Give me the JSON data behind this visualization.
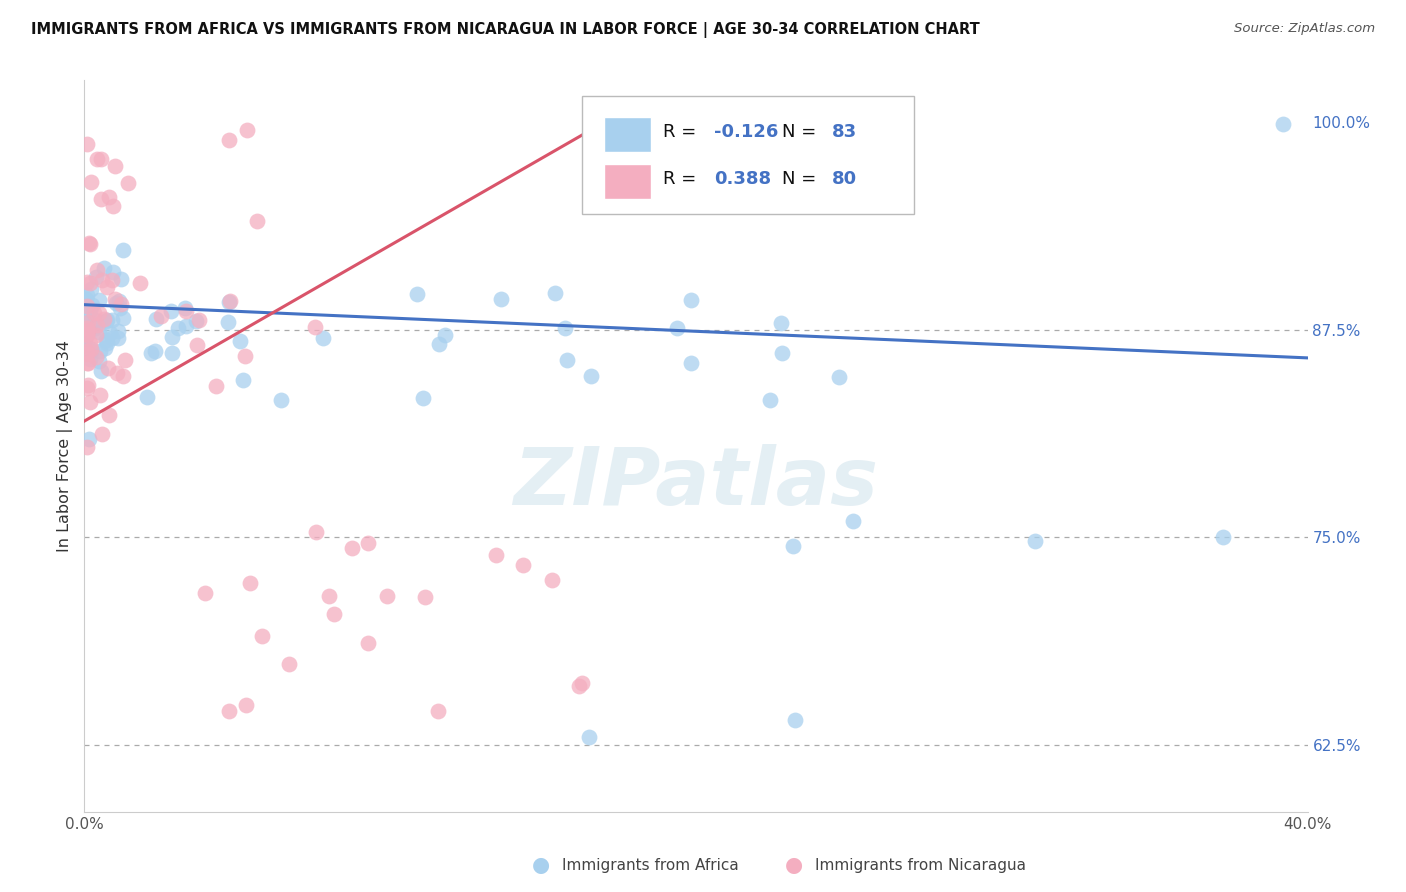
{
  "title": "IMMIGRANTS FROM AFRICA VS IMMIGRANTS FROM NICARAGUA IN LABOR FORCE | AGE 30-34 CORRELATION CHART",
  "source": "Source: ZipAtlas.com",
  "ylabel": "In Labor Force | Age 30-34",
  "xlim": [
    0.0,
    0.4
  ],
  "ylim": [
    0.585,
    1.025
  ],
  "yticks": [
    0.625,
    0.75,
    0.875,
    1.0
  ],
  "yticklabels": [
    "62.5%",
    "75.0%",
    "87.5%",
    "100.0%"
  ],
  "R_africa": -0.126,
  "N_africa": 83,
  "R_nicaragua": 0.388,
  "N_nicaragua": 80,
  "color_africa": "#a8d0ee",
  "color_nicaragua": "#f4aec0",
  "color_trendline_africa": "#4472c4",
  "color_trendline_nicaragua": "#d9546a",
  "legend_labels": [
    "Immigrants from Africa",
    "Immigrants from Nicaragua"
  ],
  "africa_trend": [
    0.0,
    0.4,
    0.89,
    0.858
  ],
  "nicaragua_trend": [
    0.0,
    0.175,
    0.82,
    1.005
  ]
}
